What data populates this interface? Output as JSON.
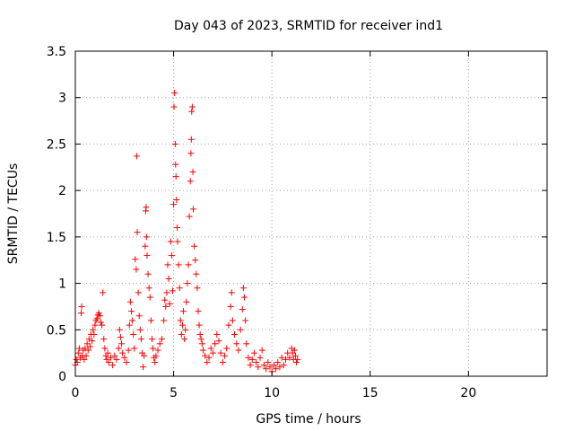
{
  "chart_data": {
    "type": "scatter",
    "title": "Day 043 of 2023, SRMTID for receiver ind1",
    "xlabel": "GPS time / hours",
    "ylabel": "SRMTID / TECUs",
    "xlim": [
      0,
      24
    ],
    "ylim": [
      0,
      3.5
    ],
    "xticks": [
      0,
      5,
      10,
      15,
      20
    ],
    "xtick_labels": [
      "0",
      "5",
      "10",
      "15",
      "20"
    ],
    "yticks": [
      0,
      0.5,
      1,
      1.5,
      2,
      2.5,
      3,
      3.5
    ],
    "ytick_labels": [
      "0",
      "0.5",
      "1",
      "1.5",
      "2",
      "2.5",
      "3",
      "3.5"
    ],
    "grid": true,
    "marker": "+",
    "color": "#ff0000",
    "series": [
      {
        "name": "ind1",
        "points": [
          [
            0.0,
            0.12
          ],
          [
            0.05,
            0.18
          ],
          [
            0.1,
            0.15
          ],
          [
            0.15,
            0.25
          ],
          [
            0.2,
            0.3
          ],
          [
            0.25,
            0.2
          ],
          [
            0.3,
            0.68
          ],
          [
            0.32,
            0.75
          ],
          [
            0.35,
            0.22
          ],
          [
            0.4,
            0.28
          ],
          [
            0.45,
            0.18
          ],
          [
            0.5,
            0.3
          ],
          [
            0.55,
            0.22
          ],
          [
            0.6,
            0.35
          ],
          [
            0.65,
            0.28
          ],
          [
            0.7,
            0.4
          ],
          [
            0.75,
            0.32
          ],
          [
            0.8,
            0.45
          ],
          [
            0.85,
            0.38
          ],
          [
            0.9,
            0.5
          ],
          [
            0.95,
            0.45
          ],
          [
            1.0,
            0.55
          ],
          [
            1.05,
            0.6
          ],
          [
            1.1,
            0.62
          ],
          [
            1.15,
            0.66
          ],
          [
            1.2,
            0.68
          ],
          [
            1.25,
            0.65
          ],
          [
            1.3,
            0.58
          ],
          [
            1.35,
            0.55
          ],
          [
            1.4,
            0.9
          ],
          [
            1.45,
            0.4
          ],
          [
            1.5,
            0.3
          ],
          [
            1.55,
            0.22
          ],
          [
            1.6,
            0.18
          ],
          [
            1.65,
            0.25
          ],
          [
            1.7,
            0.15
          ],
          [
            1.8,
            0.2
          ],
          [
            1.9,
            0.12
          ],
          [
            2.0,
            0.22
          ],
          [
            2.1,
            0.18
          ],
          [
            2.2,
            0.3
          ],
          [
            2.25,
            0.5
          ],
          [
            2.3,
            0.42
          ],
          [
            2.35,
            0.35
          ],
          [
            2.4,
            0.25
          ],
          [
            2.5,
            0.2
          ],
          [
            2.6,
            0.15
          ],
          [
            2.7,
            0.28
          ],
          [
            2.75,
            0.55
          ],
          [
            2.8,
            0.8
          ],
          [
            2.85,
            0.7
          ],
          [
            2.9,
            0.6
          ],
          [
            2.95,
            0.45
          ],
          [
            3.0,
            0.3
          ],
          [
            3.05,
            1.26
          ],
          [
            3.1,
            1.15
          ],
          [
            3.12,
            2.37
          ],
          [
            3.15,
            1.55
          ],
          [
            3.2,
            0.9
          ],
          [
            3.25,
            0.65
          ],
          [
            3.3,
            0.5
          ],
          [
            3.35,
            0.4
          ],
          [
            3.4,
            0.25
          ],
          [
            3.45,
            0.1
          ],
          [
            3.5,
            0.22
          ],
          [
            3.55,
            1.4
          ],
          [
            3.58,
            1.78
          ],
          [
            3.6,
            1.82
          ],
          [
            3.62,
            1.5
          ],
          [
            3.65,
            1.3
          ],
          [
            3.7,
            1.1
          ],
          [
            3.75,
            0.95
          ],
          [
            3.8,
            0.85
          ],
          [
            3.85,
            0.6
          ],
          [
            3.9,
            0.4
          ],
          [
            3.95,
            0.3
          ],
          [
            4.0,
            0.2
          ],
          [
            4.05,
            0.15
          ],
          [
            4.1,
            0.22
          ],
          [
            4.2,
            0.28
          ],
          [
            4.3,
            0.35
          ],
          [
            4.4,
            0.4
          ],
          [
            4.5,
            0.6
          ],
          [
            4.55,
            0.82
          ],
          [
            4.6,
            0.75
          ],
          [
            4.65,
            0.9
          ],
          [
            4.7,
            1.2
          ],
          [
            4.75,
            1.05
          ],
          [
            4.8,
            0.78
          ],
          [
            4.85,
            1.45
          ],
          [
            4.9,
            1.3
          ],
          [
            4.95,
            0.92
          ],
          [
            5.0,
            1.85
          ],
          [
            5.02,
            2.9
          ],
          [
            5.05,
            3.05
          ],
          [
            5.08,
            2.5
          ],
          [
            5.1,
            2.28
          ],
          [
            5.12,
            2.15
          ],
          [
            5.15,
            1.9
          ],
          [
            5.18,
            1.6
          ],
          [
            5.2,
            1.45
          ],
          [
            5.25,
            1.2
          ],
          [
            5.3,
            0.95
          ],
          [
            5.35,
            0.6
          ],
          [
            5.4,
            0.45
          ],
          [
            5.45,
            0.55
          ],
          [
            5.5,
            0.7
          ],
          [
            5.55,
            0.4
          ],
          [
            5.6,
            0.5
          ],
          [
            5.65,
            0.8
          ],
          [
            5.7,
            1.0
          ],
          [
            5.75,
            1.2
          ],
          [
            5.8,
            1.72
          ],
          [
            5.85,
            2.1
          ],
          [
            5.88,
            2.4
          ],
          [
            5.9,
            2.55
          ],
          [
            5.92,
            2.85
          ],
          [
            5.95,
            2.9
          ],
          [
            5.98,
            2.2
          ],
          [
            6.0,
            1.8
          ],
          [
            6.05,
            1.4
          ],
          [
            6.1,
            1.25
          ],
          [
            6.15,
            1.1
          ],
          [
            6.2,
            0.95
          ],
          [
            6.25,
            0.7
          ],
          [
            6.3,
            0.55
          ],
          [
            6.35,
            0.45
          ],
          [
            6.4,
            0.4
          ],
          [
            6.45,
            0.35
          ],
          [
            6.5,
            0.28
          ],
          [
            6.6,
            0.22
          ],
          [
            6.7,
            0.15
          ],
          [
            6.8,
            0.2
          ],
          [
            6.9,
            0.3
          ],
          [
            7.0,
            0.25
          ],
          [
            7.1,
            0.35
          ],
          [
            7.2,
            0.45
          ],
          [
            7.3,
            0.38
          ],
          [
            7.4,
            0.25
          ],
          [
            7.5,
            0.15
          ],
          [
            7.6,
            0.22
          ],
          [
            7.7,
            0.3
          ],
          [
            7.8,
            0.55
          ],
          [
            7.9,
            0.75
          ],
          [
            7.95,
            0.9
          ],
          [
            8.0,
            0.6
          ],
          [
            8.1,
            0.45
          ],
          [
            8.2,
            0.35
          ],
          [
            8.3,
            0.28
          ],
          [
            8.4,
            0.5
          ],
          [
            8.5,
            0.72
          ],
          [
            8.55,
            0.95
          ],
          [
            8.6,
            0.85
          ],
          [
            8.65,
            0.6
          ],
          [
            8.7,
            0.35
          ],
          [
            8.8,
            0.2
          ],
          [
            8.9,
            0.12
          ],
          [
            9.0,
            0.18
          ],
          [
            9.1,
            0.25
          ],
          [
            9.2,
            0.15
          ],
          [
            9.3,
            0.1
          ],
          [
            9.4,
            0.2
          ],
          [
            9.5,
            0.28
          ],
          [
            9.6,
            0.12
          ],
          [
            9.7,
            0.08
          ],
          [
            9.8,
            0.15
          ],
          [
            9.9,
            0.1
          ],
          [
            10.0,
            0.05
          ],
          [
            10.1,
            0.12
          ],
          [
            10.2,
            0.08
          ],
          [
            10.3,
            0.15
          ],
          [
            10.4,
            0.1
          ],
          [
            10.5,
            0.2
          ],
          [
            10.6,
            0.12
          ],
          [
            10.7,
            0.18
          ],
          [
            10.8,
            0.25
          ],
          [
            10.9,
            0.2
          ],
          [
            11.0,
            0.3
          ],
          [
            11.05,
            0.25
          ],
          [
            11.1,
            0.18
          ],
          [
            11.15,
            0.28
          ],
          [
            11.2,
            0.22
          ],
          [
            11.25,
            0.15
          ],
          [
            11.3,
            0.18
          ]
        ]
      }
    ]
  }
}
